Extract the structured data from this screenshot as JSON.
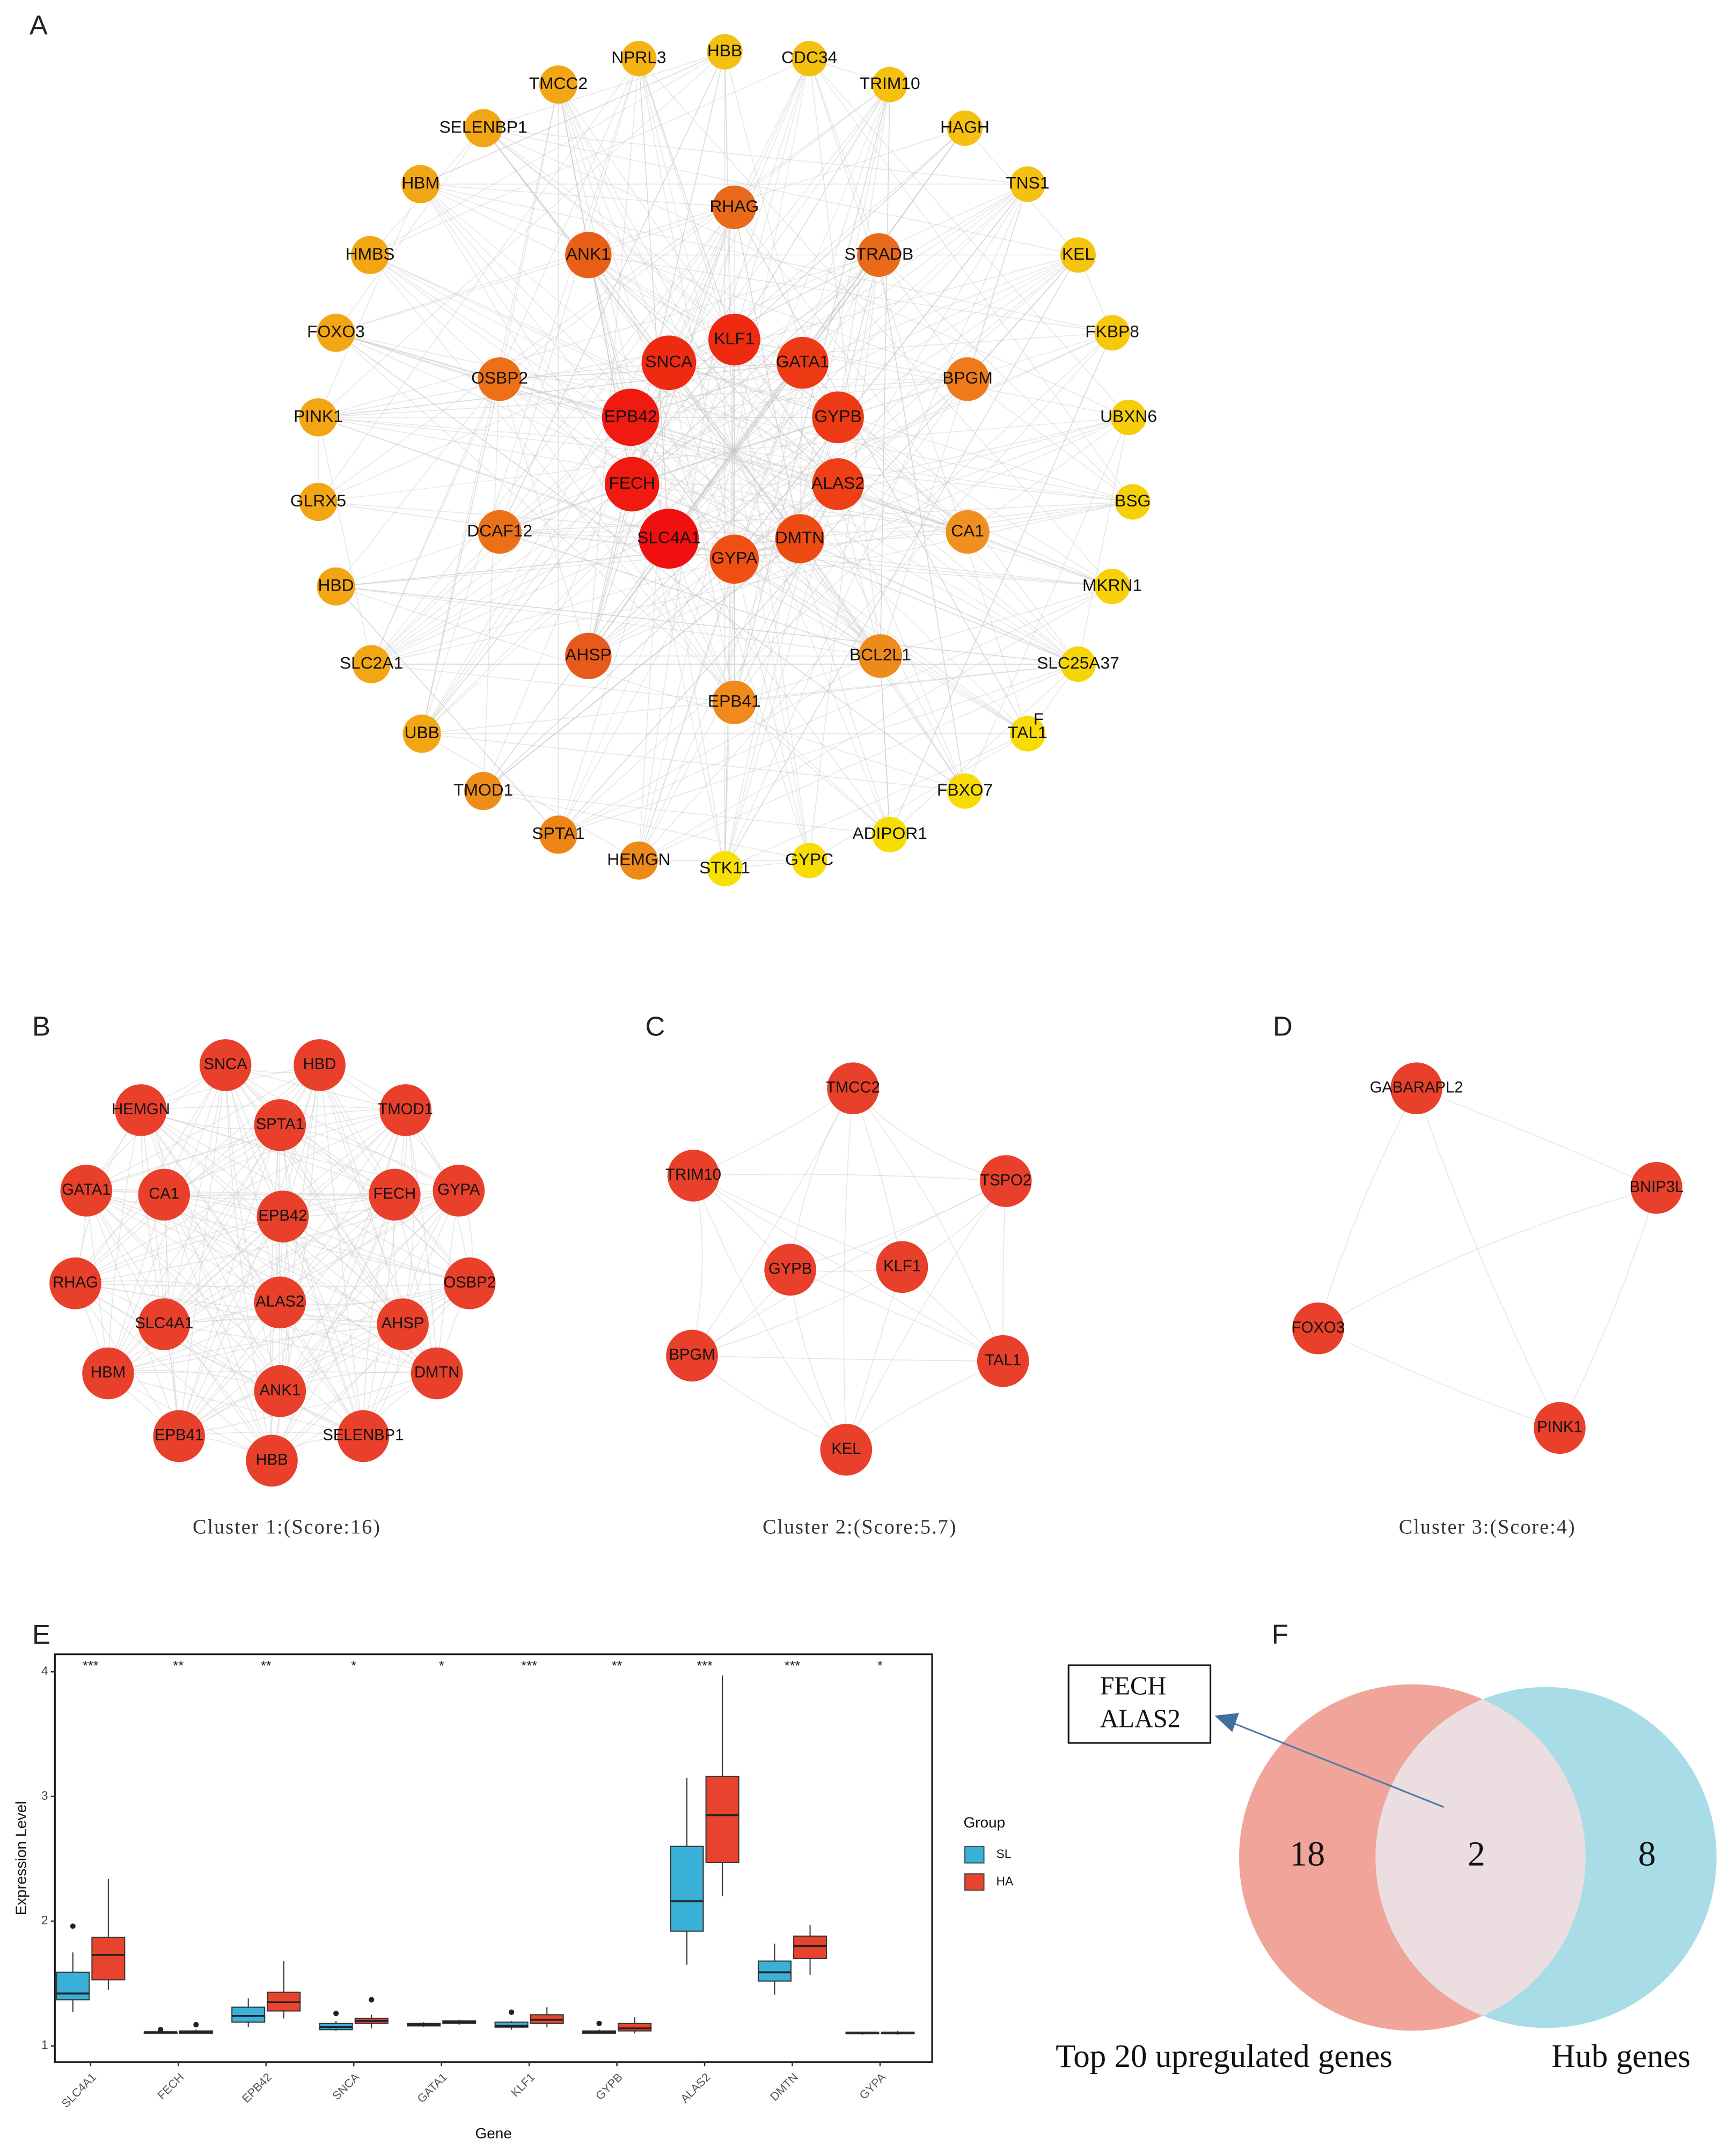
{
  "panel_labels": [
    "A",
    "B",
    "C",
    "D",
    "E",
    "F"
  ],
  "network": {
    "nodes": [
      {
        "label": "NPRL3",
        "color": "#f5b316"
      },
      {
        "label": "HBB",
        "color": "#f5c010"
      },
      {
        "label": "CDC34",
        "color": "#f5c010"
      },
      {
        "label": "TRIM10",
        "color": "#f5c010"
      },
      {
        "label": "HAGH",
        "color": "#f5c010"
      },
      {
        "label": "TNS1",
        "color": "#f5c010"
      },
      {
        "label": "KEL",
        "color": "#f5c410"
      },
      {
        "label": "FKBP8",
        "color": "#f7c80c"
      },
      {
        "label": "UBXN6",
        "color": "#f7cc0a"
      },
      {
        "label": "BSG",
        "color": "#f7d008"
      },
      {
        "label": "MKRN1",
        "color": "#f7d008"
      },
      {
        "label": "SLC25A37",
        "color": "#f7d408"
      },
      {
        "label": "TAL1",
        "color": "#f8da05"
      },
      {
        "label": "FBXO7",
        "color": "#f8da05"
      },
      {
        "label": "ADIPOR1",
        "color": "#f8dc05"
      },
      {
        "label": "GYPC",
        "color": "#f8dc05"
      },
      {
        "label": "STK11",
        "color": "#f8e004"
      },
      {
        "label": "HEMGN",
        "color": "#ee8a1a"
      },
      {
        "label": "SPTA1",
        "color": "#ed8418"
      },
      {
        "label": "TMOD1",
        "color": "#ee8e1a"
      },
      {
        "label": "UBB",
        "color": "#f3a614"
      },
      {
        "label": "SLC2A1",
        "color": "#f3a614"
      },
      {
        "label": "HBD",
        "color": "#f3a614"
      },
      {
        "label": "GLRX5",
        "color": "#f3a614"
      },
      {
        "label": "PINK1",
        "color": "#f3a614"
      },
      {
        "label": "FOXO3",
        "color": "#f3a614"
      },
      {
        "label": "HMBS",
        "color": "#f3a614"
      },
      {
        "label": "HBM",
        "color": "#f3a614"
      },
      {
        "label": "SELENBP1",
        "color": "#f3a614"
      },
      {
        "label": "TMCC2",
        "color": "#f3a614"
      },
      {
        "label": "RHAG",
        "color": "#ea6a1c"
      },
      {
        "label": "STRADB",
        "color": "#ea6a1c"
      },
      {
        "label": "BPGM",
        "color": "#ee7a1a"
      },
      {
        "label": "CA1",
        "color": "#f09020"
      },
      {
        "label": "BCL2L1",
        "color": "#ee8a1a"
      },
      {
        "label": "EPB41",
        "color": "#f08a1a"
      },
      {
        "label": "AHSP",
        "color": "#e85a1c"
      },
      {
        "label": "DCAF12",
        "color": "#ec7018"
      },
      {
        "label": "OSBP2",
        "color": "#ec7018"
      },
      {
        "label": "ANK1",
        "color": "#e86018"
      },
      {
        "label": "KLF1",
        "color": "#ee2a10"
      },
      {
        "label": "GATA1",
        "color": "#ee3a14"
      },
      {
        "label": "GYPB",
        "color": "#ee3a14"
      },
      {
        "label": "ALAS2",
        "color": "#ee4014"
      },
      {
        "label": "DMTN",
        "color": "#ee4a14"
      },
      {
        "label": "GYPA",
        "color": "#ee5014"
      },
      {
        "label": "SLC4A1",
        "color": "#f01010"
      },
      {
        "label": "FECH",
        "color": "#f01a10"
      },
      {
        "label": "EPB42",
        "color": "#f01a10"
      },
      {
        "label": "SNCA",
        "color": "#ee2a10"
      }
    ],
    "stray_label": "F"
  },
  "clusters": [
    {
      "caption": "Cluster 1:(Score:16)",
      "color": "#e8402a",
      "nodes": [
        "SNCA",
        "HBD",
        "HEMGN",
        "SPTA1",
        "TMOD1",
        "GATA1",
        "CA1",
        "EPB42",
        "FECH",
        "GYPA",
        "RHAG",
        "SLC4A1",
        "ALAS2",
        "AHSP",
        "OSBP2",
        "HBM",
        "ANK1",
        "DMTN",
        "EPB41",
        "SELENBP1",
        "HBB"
      ]
    },
    {
      "caption": "Cluster 2:(Score:5.7)",
      "color": "#e8402a",
      "nodes": [
        "TMCC2",
        "TRIM10",
        "TSPO2",
        "GYPB",
        "KLF1",
        "BPGM",
        "TAL1",
        "KEL"
      ]
    },
    {
      "caption": "Cluster 3:(Score:4)",
      "color": "#e8402a",
      "nodes": [
        "GABARAPL2",
        "BNIP3L",
        "FOXO3",
        "PINK1"
      ]
    }
  ],
  "chart_data": {
    "type": "box",
    "x_label": "Gene",
    "y_label": "Expression Level",
    "categories": [
      "SLC4A1",
      "FECH",
      "EPB42",
      "SNCA",
      "GATA1",
      "KLF1",
      "GYPB",
      "ALAS2",
      "DMTN",
      "GYPA"
    ],
    "significance": [
      "***",
      "**",
      "**",
      "*",
      "*",
      "***",
      "**",
      "***",
      "***",
      "*"
    ],
    "ylim": [
      0.87,
      4.14
    ],
    "yticks": [
      1,
      2,
      3,
      4
    ],
    "legend_title": "Group",
    "series": [
      {
        "name": "SL",
        "color": "#3ab0d8",
        "values": [
          {
            "min": 1.27,
            "q1": 1.37,
            "median": 1.42,
            "q3": 1.59,
            "max": 1.75,
            "outliers": [
              1.96
            ]
          },
          {
            "min": 1.1,
            "q1": 1.1,
            "median": 1.11,
            "q3": 1.11,
            "max": 1.12,
            "outliers": [
              1.13
            ]
          },
          {
            "min": 1.15,
            "q1": 1.19,
            "median": 1.24,
            "q3": 1.31,
            "max": 1.38,
            "outliers": []
          },
          {
            "min": 1.12,
            "q1": 1.13,
            "median": 1.15,
            "q3": 1.18,
            "max": 1.2,
            "outliers": [
              1.26
            ]
          },
          {
            "min": 1.15,
            "q1": 1.16,
            "median": 1.17,
            "q3": 1.18,
            "max": 1.19,
            "outliers": []
          },
          {
            "min": 1.13,
            "q1": 1.15,
            "median": 1.16,
            "q3": 1.19,
            "max": 1.2,
            "outliers": [
              1.27
            ]
          },
          {
            "min": 1.1,
            "q1": 1.1,
            "median": 1.11,
            "q3": 1.12,
            "max": 1.13,
            "outliers": [
              1.18
            ]
          },
          {
            "min": 1.65,
            "q1": 1.92,
            "median": 2.16,
            "q3": 2.6,
            "max": 3.15,
            "outliers": []
          },
          {
            "min": 1.41,
            "q1": 1.52,
            "median": 1.59,
            "q3": 1.68,
            "max": 1.82,
            "outliers": []
          },
          {
            "min": 1.09,
            "q1": 1.1,
            "median": 1.1,
            "q3": 1.11,
            "max": 1.11,
            "outliers": []
          }
        ]
      },
      {
        "name": "HA",
        "color": "#e8432e",
        "values": [
          {
            "min": 1.45,
            "q1": 1.53,
            "median": 1.73,
            "q3": 1.87,
            "max": 2.34,
            "outliers": []
          },
          {
            "min": 1.1,
            "q1": 1.1,
            "median": 1.11,
            "q3": 1.12,
            "max": 1.13,
            "outliers": [
              1.17
            ]
          },
          {
            "min": 1.22,
            "q1": 1.28,
            "median": 1.35,
            "q3": 1.43,
            "max": 1.68,
            "outliers": []
          },
          {
            "min": 1.14,
            "q1": 1.18,
            "median": 1.2,
            "q3": 1.22,
            "max": 1.25,
            "outliers": [
              1.37
            ]
          },
          {
            "min": 1.17,
            "q1": 1.18,
            "median": 1.19,
            "q3": 1.2,
            "max": 1.21,
            "outliers": []
          },
          {
            "min": 1.15,
            "q1": 1.18,
            "median": 1.21,
            "q3": 1.25,
            "max": 1.31,
            "outliers": []
          },
          {
            "min": 1.1,
            "q1": 1.12,
            "median": 1.14,
            "q3": 1.18,
            "max": 1.23,
            "outliers": []
          },
          {
            "min": 2.2,
            "q1": 2.47,
            "median": 2.85,
            "q3": 3.16,
            "max": 3.97,
            "outliers": []
          },
          {
            "min": 1.57,
            "q1": 1.7,
            "median": 1.8,
            "q3": 1.88,
            "max": 1.97,
            "outliers": []
          },
          {
            "min": 1.09,
            "q1": 1.1,
            "median": 1.1,
            "q3": 1.11,
            "max": 1.12,
            "outliers": []
          }
        ]
      }
    ]
  },
  "venn": {
    "sets": [
      {
        "name": "Top 20 upregulated genes",
        "color": "#f0a49a",
        "only": 18
      },
      {
        "name": "Hub genes",
        "color": "#a8dde8",
        "only": 8
      }
    ],
    "overlap": 2,
    "overlap_color": "#ecdde0",
    "overlap_genes": [
      "FECH",
      "ALAS2"
    ]
  }
}
